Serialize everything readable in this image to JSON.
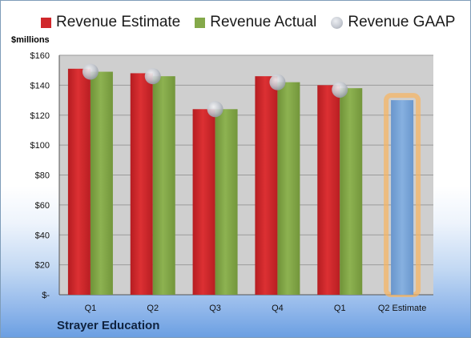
{
  "legend": {
    "estimate_label": "Revenue Estimate",
    "actual_label": "Revenue Actual",
    "gaap_label": "Revenue GAAP"
  },
  "unit_label": "$millions",
  "company": "Strayer Education",
  "colors": {
    "estimate": "#d0272b",
    "actual": "#84a94a",
    "gaap_marker": "#b9bec7",
    "projection": "#7aa7da",
    "projection_glow": "#f5b565",
    "plot_background": "#cfcfcf"
  },
  "chart_data": {
    "type": "bar",
    "categories": [
      "Q1",
      "Q2",
      "Q3",
      "Q4",
      "Q1",
      "Q2 Estimate"
    ],
    "series": [
      {
        "name": "Revenue Estimate",
        "values": [
          151,
          148,
          124,
          146,
          140,
          130
        ]
      },
      {
        "name": "Revenue Actual",
        "values": [
          149,
          146,
          124,
          142,
          138,
          null
        ]
      },
      {
        "name": "Revenue GAAP",
        "values": [
          149,
          146,
          124,
          142,
          137,
          null
        ]
      }
    ],
    "ylim": [
      0,
      160
    ],
    "yticks": [
      {
        "value": 0,
        "label": "$-"
      },
      {
        "value": 20,
        "label": "$20"
      },
      {
        "value": 40,
        "label": "$40"
      },
      {
        "value": 60,
        "label": "$60"
      },
      {
        "value": 80,
        "label": "$80"
      },
      {
        "value": 100,
        "label": "$100"
      },
      {
        "value": 120,
        "label": "$120"
      },
      {
        "value": 140,
        "label": "$140"
      },
      {
        "value": 160,
        "label": "$160"
      }
    ],
    "grid": true,
    "legend_position": "top",
    "xlabel": "",
    "ylabel": "$millions"
  }
}
